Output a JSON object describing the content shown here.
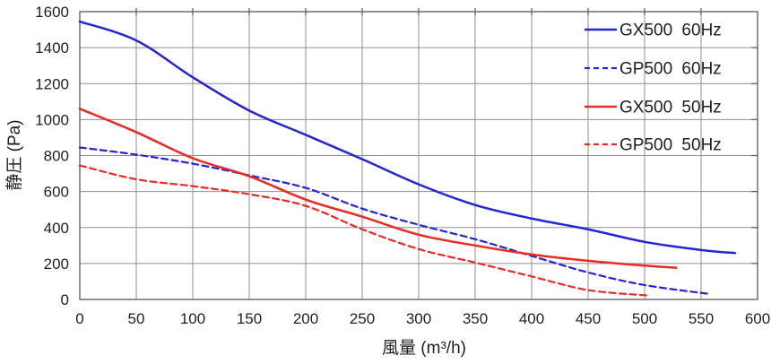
{
  "chart_data": {
    "type": "line",
    "title": "",
    "xlabel": "風量 (m³/h)",
    "ylabel": "静圧 (Pa)",
    "xlim": [
      0,
      600
    ],
    "ylim": [
      0,
      1600
    ],
    "xticks": [
      0,
      50,
      100,
      150,
      200,
      250,
      300,
      350,
      400,
      450,
      500,
      550,
      600
    ],
    "yticks": [
      0,
      200,
      400,
      600,
      800,
      1000,
      1200,
      1400,
      1600
    ],
    "grid": true,
    "legend_position": "top-right-inside",
    "colors": {
      "blue": "#2424da",
      "red": "#ea2a23",
      "grid": "#8f8f8f",
      "border": "#595959",
      "text": "#1f1f1f",
      "background": "#ffffff"
    },
    "series": [
      {
        "name": "GX500 60Hz",
        "color": "#2424da",
        "style": "solid",
        "points": [
          [
            0,
            1545
          ],
          [
            50,
            1440
          ],
          [
            100,
            1235
          ],
          [
            150,
            1050
          ],
          [
            200,
            915
          ],
          [
            250,
            780
          ],
          [
            300,
            640
          ],
          [
            350,
            525
          ],
          [
            400,
            450
          ],
          [
            450,
            390
          ],
          [
            500,
            320
          ],
          [
            550,
            275
          ],
          [
            580,
            258
          ]
        ]
      },
      {
        "name": "GP500 60Hz",
        "color": "#2424da",
        "style": "dashed",
        "points": [
          [
            0,
            845
          ],
          [
            50,
            805
          ],
          [
            100,
            755
          ],
          [
            150,
            690
          ],
          [
            200,
            620
          ],
          [
            250,
            505
          ],
          [
            300,
            415
          ],
          [
            350,
            335
          ],
          [
            400,
            242
          ],
          [
            450,
            150
          ],
          [
            500,
            80
          ],
          [
            558,
            30
          ]
        ]
      },
      {
        "name": "GX500 50Hz",
        "color": "#ea2a23",
        "style": "solid",
        "points": [
          [
            0,
            1060
          ],
          [
            50,
            930
          ],
          [
            100,
            785
          ],
          [
            150,
            685
          ],
          [
            200,
            555
          ],
          [
            250,
            460
          ],
          [
            300,
            360
          ],
          [
            350,
            300
          ],
          [
            400,
            250
          ],
          [
            450,
            215
          ],
          [
            500,
            188
          ],
          [
            528,
            176
          ]
        ]
      },
      {
        "name": "GP500 50Hz",
        "color": "#ea2a23",
        "style": "dashed",
        "points": [
          [
            0,
            745
          ],
          [
            50,
            668
          ],
          [
            100,
            630
          ],
          [
            150,
            585
          ],
          [
            200,
            520
          ],
          [
            250,
            390
          ],
          [
            300,
            280
          ],
          [
            350,
            205
          ],
          [
            400,
            128
          ],
          [
            450,
            52
          ],
          [
            503,
            22
          ]
        ]
      }
    ]
  }
}
